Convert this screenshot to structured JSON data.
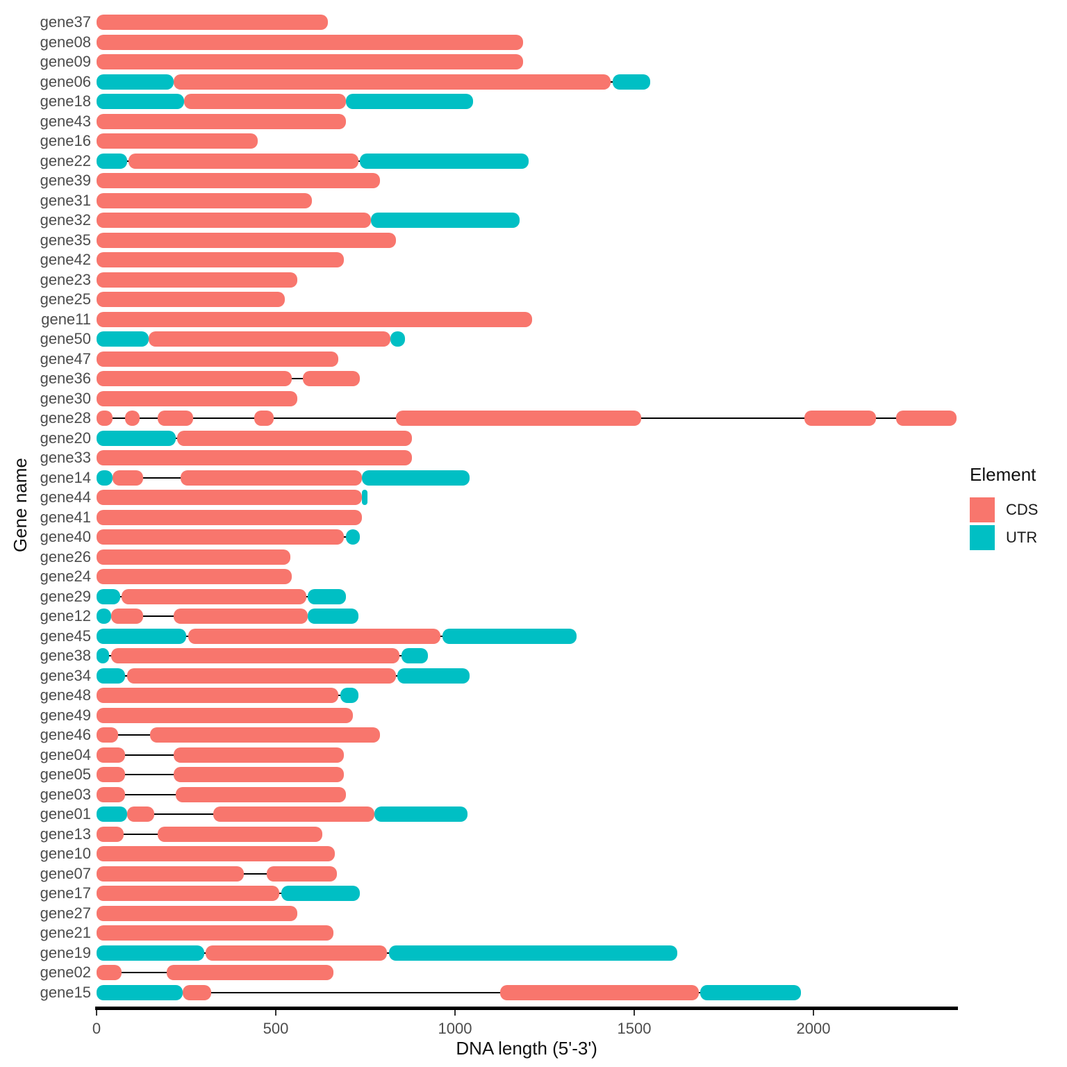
{
  "axes": {
    "x_label": "DNA length (5'-3')",
    "y_label": "Gene name",
    "x_ticks": [
      0,
      500,
      1000,
      1500,
      2000
    ],
    "x_min": 0,
    "x_max": 2400
  },
  "legend": {
    "title": "Element",
    "items": [
      {
        "label": "CDS",
        "color": "#F8766D"
      },
      {
        "label": "UTR",
        "color": "#00BFC4"
      }
    ]
  },
  "colors": {
    "cds": "#F8766D",
    "utr": "#00BFC4",
    "intron_line": "#000000",
    "axis_text": "#4d4d4d"
  },
  "chart_data": {
    "type": "gene-structure",
    "title": "",
    "xlabel": "DNA length (5'-3')",
    "ylabel": "Gene name",
    "xlim": [
      0,
      2400
    ],
    "grid": false,
    "legend_position": "right",
    "element_types": [
      "CDS",
      "UTR"
    ],
    "genes": [
      {
        "name": "gene37",
        "elements": [
          {
            "type": "CDS",
            "start": 0,
            "end": 645
          }
        ]
      },
      {
        "name": "gene08",
        "elements": [
          {
            "type": "CDS",
            "start": 0,
            "end": 1190
          }
        ]
      },
      {
        "name": "gene09",
        "elements": [
          {
            "type": "CDS",
            "start": 0,
            "end": 1190
          }
        ]
      },
      {
        "name": "gene06",
        "elements": [
          {
            "type": "UTR",
            "start": 0,
            "end": 215
          },
          {
            "type": "CDS",
            "start": 215,
            "end": 1435
          },
          {
            "type": "UTR",
            "start": 1440,
            "end": 1545
          }
        ]
      },
      {
        "name": "gene18",
        "elements": [
          {
            "type": "UTR",
            "start": 0,
            "end": 245
          },
          {
            "type": "CDS",
            "start": 245,
            "end": 695
          },
          {
            "type": "UTR",
            "start": 695,
            "end": 1050
          }
        ]
      },
      {
        "name": "gene43",
        "elements": [
          {
            "type": "CDS",
            "start": 0,
            "end": 695
          }
        ]
      },
      {
        "name": "gene16",
        "elements": [
          {
            "type": "CDS",
            "start": 0,
            "end": 450
          }
        ]
      },
      {
        "name": "gene22",
        "elements": [
          {
            "type": "UTR",
            "start": 0,
            "end": 85
          },
          {
            "type": "CDS",
            "start": 90,
            "end": 730
          },
          {
            "type": "UTR",
            "start": 735,
            "end": 1205
          }
        ]
      },
      {
        "name": "gene39",
        "elements": [
          {
            "type": "CDS",
            "start": 0,
            "end": 790
          }
        ]
      },
      {
        "name": "gene31",
        "elements": [
          {
            "type": "CDS",
            "start": 0,
            "end": 600
          }
        ]
      },
      {
        "name": "gene32",
        "elements": [
          {
            "type": "CDS",
            "start": 0,
            "end": 765
          },
          {
            "type": "UTR",
            "start": 765,
            "end": 1180
          }
        ]
      },
      {
        "name": "gene35",
        "elements": [
          {
            "type": "CDS",
            "start": 0,
            "end": 835
          }
        ]
      },
      {
        "name": "gene42",
        "elements": [
          {
            "type": "CDS",
            "start": 0,
            "end": 690
          }
        ]
      },
      {
        "name": "gene23",
        "elements": [
          {
            "type": "CDS",
            "start": 0,
            "end": 560
          }
        ]
      },
      {
        "name": "gene25",
        "elements": [
          {
            "type": "CDS",
            "start": 0,
            "end": 525
          }
        ]
      },
      {
        "name": "gene11",
        "elements": [
          {
            "type": "CDS",
            "start": 0,
            "end": 1215
          }
        ]
      },
      {
        "name": "gene50",
        "elements": [
          {
            "type": "UTR",
            "start": 0,
            "end": 145
          },
          {
            "type": "CDS",
            "start": 145,
            "end": 820
          },
          {
            "type": "UTR",
            "start": 820,
            "end": 860
          }
        ]
      },
      {
        "name": "gene47",
        "elements": [
          {
            "type": "CDS",
            "start": 0,
            "end": 675
          }
        ]
      },
      {
        "name": "gene36",
        "elements": [
          {
            "type": "CDS",
            "start": 0,
            "end": 545
          },
          {
            "type": "CDS",
            "start": 575,
            "end": 735
          }
        ]
      },
      {
        "name": "gene30",
        "elements": [
          {
            "type": "CDS",
            "start": 0,
            "end": 560
          }
        ]
      },
      {
        "name": "gene28",
        "elements": [
          {
            "type": "CDS",
            "start": 0,
            "end": 45
          },
          {
            "type": "CDS",
            "start": 80,
            "end": 120
          },
          {
            "type": "CDS",
            "start": 170,
            "end": 270
          },
          {
            "type": "CDS",
            "start": 440,
            "end": 495
          },
          {
            "type": "CDS",
            "start": 835,
            "end": 1520
          },
          {
            "type": "CDS",
            "start": 1975,
            "end": 2175
          },
          {
            "type": "CDS",
            "start": 2230,
            "end": 2400
          }
        ]
      },
      {
        "name": "gene20",
        "elements": [
          {
            "type": "UTR",
            "start": 0,
            "end": 220
          },
          {
            "type": "CDS",
            "start": 225,
            "end": 880
          }
        ]
      },
      {
        "name": "gene33",
        "elements": [
          {
            "type": "CDS",
            "start": 0,
            "end": 880
          }
        ]
      },
      {
        "name": "gene14",
        "elements": [
          {
            "type": "UTR",
            "start": 0,
            "end": 45
          },
          {
            "type": "CDS",
            "start": 45,
            "end": 130
          },
          {
            "type": "CDS",
            "start": 235,
            "end": 740
          },
          {
            "type": "UTR",
            "start": 740,
            "end": 1040
          }
        ]
      },
      {
        "name": "gene44",
        "elements": [
          {
            "type": "CDS",
            "start": 0,
            "end": 740
          },
          {
            "type": "UTR",
            "start": 740,
            "end": 755
          }
        ]
      },
      {
        "name": "gene41",
        "elements": [
          {
            "type": "CDS",
            "start": 0,
            "end": 740
          }
        ]
      },
      {
        "name": "gene40",
        "elements": [
          {
            "type": "CDS",
            "start": 0,
            "end": 690
          },
          {
            "type": "UTR",
            "start": 695,
            "end": 735
          }
        ]
      },
      {
        "name": "gene26",
        "elements": [
          {
            "type": "CDS",
            "start": 0,
            "end": 540
          }
        ]
      },
      {
        "name": "gene24",
        "elements": [
          {
            "type": "CDS",
            "start": 0,
            "end": 545
          }
        ]
      },
      {
        "name": "gene29",
        "elements": [
          {
            "type": "UTR",
            "start": 0,
            "end": 65
          },
          {
            "type": "CDS",
            "start": 70,
            "end": 585
          },
          {
            "type": "UTR",
            "start": 590,
            "end": 695
          }
        ]
      },
      {
        "name": "gene12",
        "elements": [
          {
            "type": "UTR",
            "start": 0,
            "end": 40
          },
          {
            "type": "CDS",
            "start": 40,
            "end": 130
          },
          {
            "type": "CDS",
            "start": 215,
            "end": 590
          },
          {
            "type": "UTR",
            "start": 590,
            "end": 730
          }
        ]
      },
      {
        "name": "gene45",
        "elements": [
          {
            "type": "UTR",
            "start": 0,
            "end": 250
          },
          {
            "type": "CDS",
            "start": 255,
            "end": 960
          },
          {
            "type": "UTR",
            "start": 965,
            "end": 1340
          }
        ]
      },
      {
        "name": "gene38",
        "elements": [
          {
            "type": "UTR",
            "start": 0,
            "end": 35
          },
          {
            "type": "CDS",
            "start": 40,
            "end": 845
          },
          {
            "type": "UTR",
            "start": 850,
            "end": 925
          }
        ]
      },
      {
        "name": "gene34",
        "elements": [
          {
            "type": "UTR",
            "start": 0,
            "end": 80
          },
          {
            "type": "CDS",
            "start": 85,
            "end": 835
          },
          {
            "type": "UTR",
            "start": 840,
            "end": 1040
          }
        ]
      },
      {
        "name": "gene48",
        "elements": [
          {
            "type": "CDS",
            "start": 0,
            "end": 675
          },
          {
            "type": "UTR",
            "start": 680,
            "end": 730
          }
        ]
      },
      {
        "name": "gene49",
        "elements": [
          {
            "type": "CDS",
            "start": 0,
            "end": 715
          }
        ]
      },
      {
        "name": "gene46",
        "elements": [
          {
            "type": "CDS",
            "start": 0,
            "end": 60
          },
          {
            "type": "CDS",
            "start": 150,
            "end": 790
          }
        ]
      },
      {
        "name": "gene04",
        "elements": [
          {
            "type": "CDS",
            "start": 0,
            "end": 80
          },
          {
            "type": "CDS",
            "start": 215,
            "end": 690
          }
        ]
      },
      {
        "name": "gene05",
        "elements": [
          {
            "type": "CDS",
            "start": 0,
            "end": 80
          },
          {
            "type": "CDS",
            "start": 215,
            "end": 690
          }
        ]
      },
      {
        "name": "gene03",
        "elements": [
          {
            "type": "CDS",
            "start": 0,
            "end": 80
          },
          {
            "type": "CDS",
            "start": 220,
            "end": 695
          }
        ]
      },
      {
        "name": "gene01",
        "elements": [
          {
            "type": "UTR",
            "start": 0,
            "end": 85
          },
          {
            "type": "CDS",
            "start": 85,
            "end": 160
          },
          {
            "type": "CDS",
            "start": 325,
            "end": 775
          },
          {
            "type": "UTR",
            "start": 775,
            "end": 1035
          }
        ]
      },
      {
        "name": "gene13",
        "elements": [
          {
            "type": "CDS",
            "start": 0,
            "end": 75
          },
          {
            "type": "CDS",
            "start": 170,
            "end": 630
          }
        ]
      },
      {
        "name": "gene10",
        "elements": [
          {
            "type": "CDS",
            "start": 0,
            "end": 665
          }
        ]
      },
      {
        "name": "gene07",
        "elements": [
          {
            "type": "CDS",
            "start": 0,
            "end": 410
          },
          {
            "type": "CDS",
            "start": 475,
            "end": 670
          }
        ]
      },
      {
        "name": "gene17",
        "elements": [
          {
            "type": "CDS",
            "start": 0,
            "end": 510
          },
          {
            "type": "UTR",
            "start": 515,
            "end": 735
          }
        ]
      },
      {
        "name": "gene27",
        "elements": [
          {
            "type": "CDS",
            "start": 0,
            "end": 560
          }
        ]
      },
      {
        "name": "gene21",
        "elements": [
          {
            "type": "CDS",
            "start": 0,
            "end": 660
          }
        ]
      },
      {
        "name": "gene19",
        "elements": [
          {
            "type": "UTR",
            "start": 0,
            "end": 300
          },
          {
            "type": "CDS",
            "start": 305,
            "end": 810
          },
          {
            "type": "UTR",
            "start": 815,
            "end": 1620
          }
        ]
      },
      {
        "name": "gene02",
        "elements": [
          {
            "type": "CDS",
            "start": 0,
            "end": 70
          },
          {
            "type": "CDS",
            "start": 195,
            "end": 660
          }
        ]
      },
      {
        "name": "gene15",
        "elements": [
          {
            "type": "UTR",
            "start": 0,
            "end": 240
          },
          {
            "type": "CDS",
            "start": 240,
            "end": 320
          },
          {
            "type": "CDS",
            "start": 1125,
            "end": 1680
          },
          {
            "type": "UTR",
            "start": 1685,
            "end": 1965
          }
        ]
      }
    ]
  }
}
